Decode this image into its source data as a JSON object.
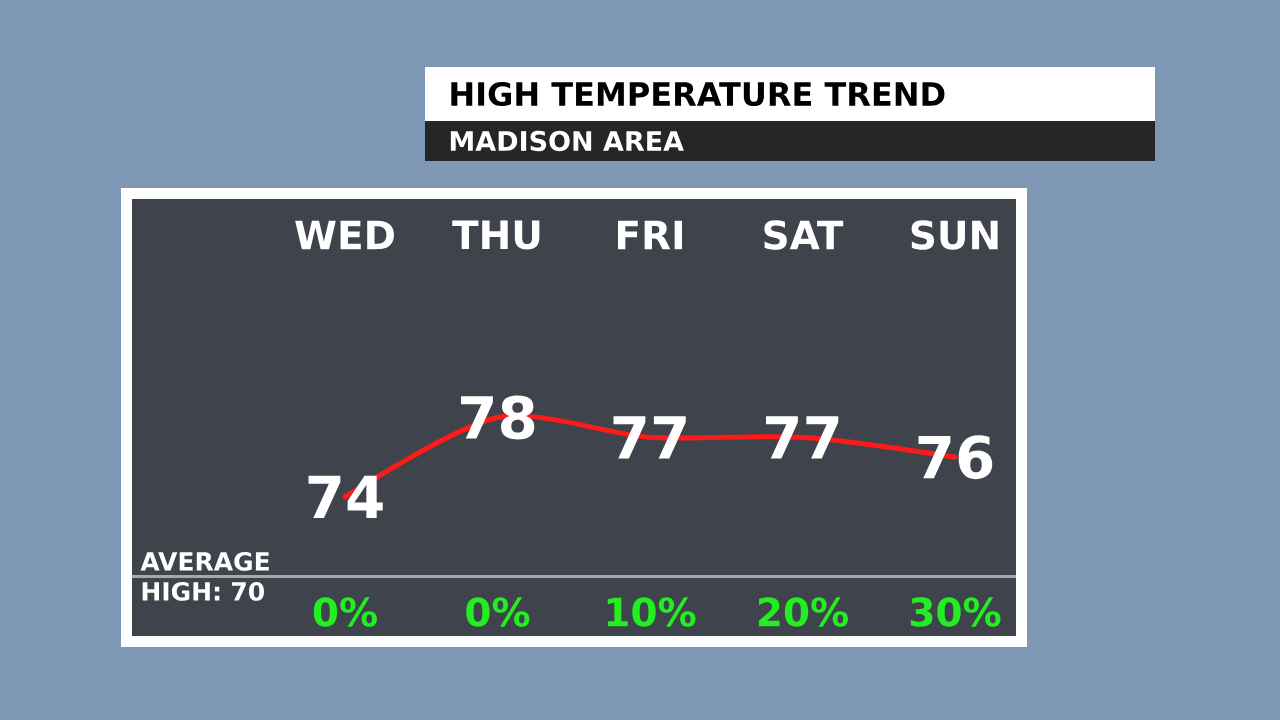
{
  "chart_data": {
    "type": "line",
    "title": "HIGH TEMPERATURE TREND",
    "subtitle": "MADISON AREA",
    "categories": [
      "WED",
      "THU",
      "FRI",
      "SAT",
      "SUN"
    ],
    "values": [
      74,
      78,
      77,
      77,
      76
    ],
    "color": "#ff1a1a",
    "ylim": [
      67,
      89
    ],
    "data_labels": true,
    "marker": "none",
    "line_style": "solid",
    "tick_labels": "x",
    "ref_lines": [
      {
        "axis": "y",
        "value": 70,
        "label": "AVERAGE HIGH: 70",
        "color": "#a8a8a8"
      }
    ],
    "annotations": [
      "0%",
      "0%",
      "10%",
      "20%",
      "30%"
    ]
  }
}
